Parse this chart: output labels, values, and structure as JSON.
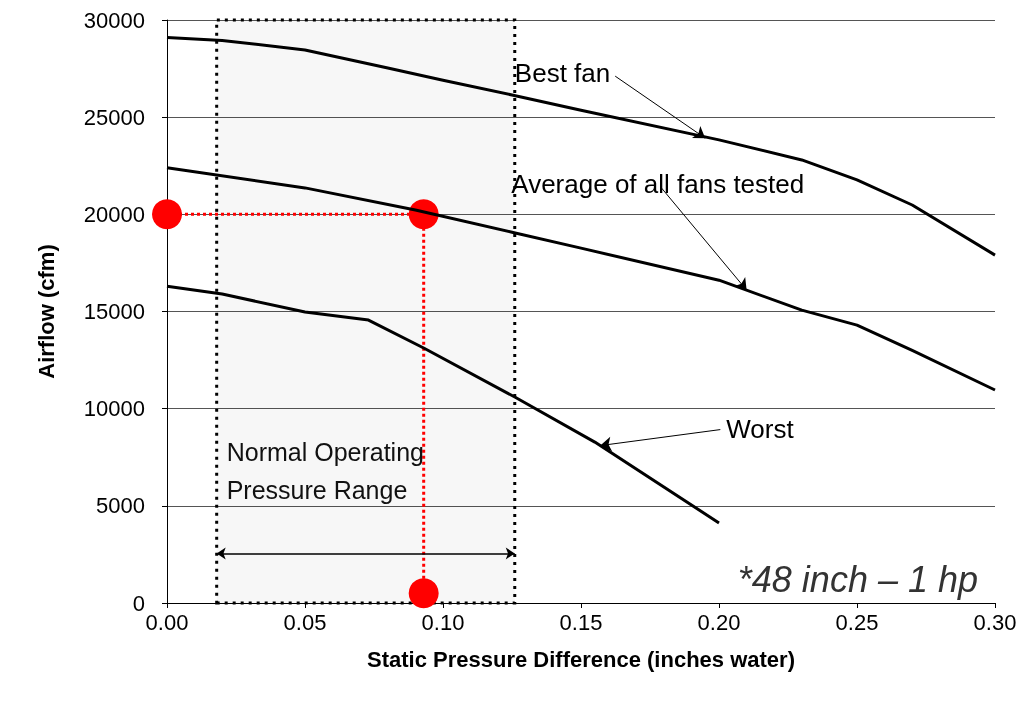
{
  "chart_data": {
    "type": "line",
    "xlabel": "Static Pressure Difference (inches water)",
    "ylabel": "Airflow (cfm)",
    "xlim": [
      0,
      0.3
    ],
    "xticks": [
      {
        "value": 0,
        "label": "0.00"
      },
      {
        "value": 0.05,
        "label": "0.05"
      },
      {
        "value": 0.1,
        "label": "0.10"
      },
      {
        "value": 0.15,
        "label": "0.15"
      },
      {
        "value": 0.2,
        "label": "0.20"
      },
      {
        "value": 0.25,
        "label": "0.25"
      },
      {
        "value": 0.3,
        "label": "0.30"
      }
    ],
    "ylim": [
      0,
      30000
    ],
    "yticks": [
      0,
      5000,
      10000,
      15000,
      20000,
      25000,
      30000
    ],
    "grid": "y",
    "marker": "none",
    "line_style": "solid",
    "series": [
      {
        "color": "#000000",
        "x": [
          0,
          0.02,
          0.05,
          0.08,
          0.1,
          0.125,
          0.15,
          0.2,
          0.23,
          0.25,
          0.27,
          0.3
        ],
        "values": [
          29100,
          28950,
          28460,
          27530,
          26900,
          26140,
          25360,
          23830,
          22800,
          21770,
          20480,
          17900
        ]
      },
      {
        "color": "#000000",
        "x": [
          0,
          0.05,
          0.09,
          0.125,
          0.15,
          0.2,
          0.23,
          0.25,
          0.27,
          0.3
        ],
        "values": [
          22400,
          21360,
          20220,
          19080,
          18260,
          16610,
          15070,
          14300,
          13000,
          10960
        ]
      },
      {
        "color": "#000000",
        "x": [
          0,
          0.02,
          0.05,
          0.073,
          0.093,
          0.126,
          0.155,
          0.2
        ],
        "values": [
          16300,
          15900,
          14970,
          14560,
          13120,
          10600,
          8280,
          4120
        ]
      },
      {
        "color": "#ff0000",
        "marker": "circle",
        "line_style": "dotted",
        "x": [
          0,
          0.093,
          0.093
        ],
        "values": [
          20000,
          20000,
          500
        ]
      }
    ],
    "bands": [
      {
        "axis": "x",
        "from": 0.018,
        "to": 0.126,
        "label": "Normal Operating\nPressure Range"
      }
    ],
    "annotations": [
      {
        "text": "Best fan",
        "x": 0.195,
        "y": 23920
      },
      {
        "text": "Average of all fans tested",
        "x": 0.21,
        "y": 16100
      },
      {
        "text": "Worst",
        "x": 0.157,
        "y": 8100
      },
      "*48 inch – 1 hp"
    ]
  }
}
